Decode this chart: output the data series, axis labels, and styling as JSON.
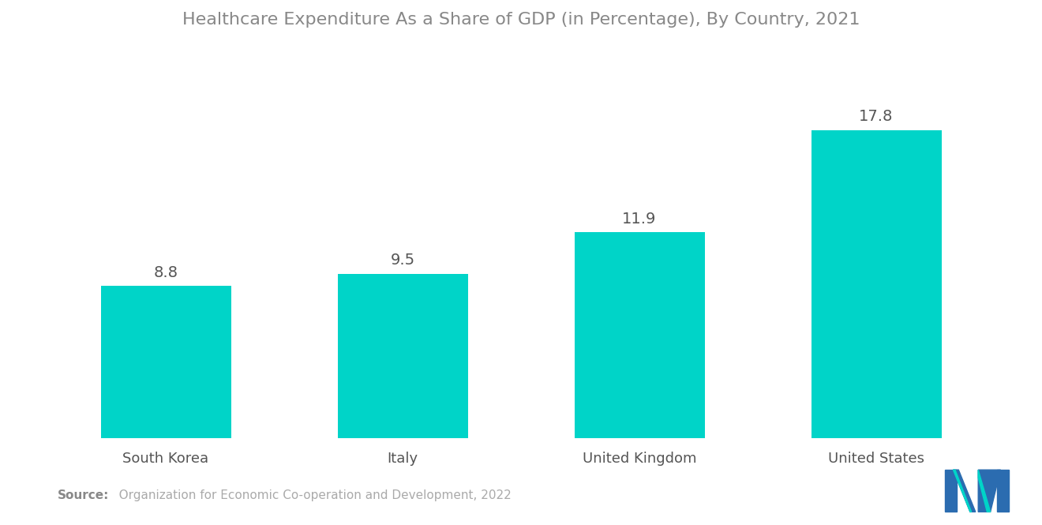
{
  "title": "Healthcare Expenditure As a Share of GDP (in Percentage), By Country, 2021",
  "categories": [
    "South Korea",
    "Italy",
    "United Kingdom",
    "United States"
  ],
  "values": [
    8.8,
    9.5,
    11.9,
    17.8
  ],
  "bar_color": "#00D4C8",
  "title_color": "#888888",
  "label_color": "#555555",
  "value_color": "#555555",
  "source_bold": "Source:",
  "source_text": "   Organization for Economic Co-operation and Development, 2022",
  "source_color": "#aaaaaa",
  "background_color": "#ffffff",
  "ylim": [
    0,
    22
  ],
  "bar_width": 0.55,
  "value_fontsize": 14,
  "category_fontsize": 13,
  "title_fontsize": 16,
  "source_fontsize": 11,
  "logo_blue": "#2B6CB0",
  "logo_teal": "#00D4C8"
}
